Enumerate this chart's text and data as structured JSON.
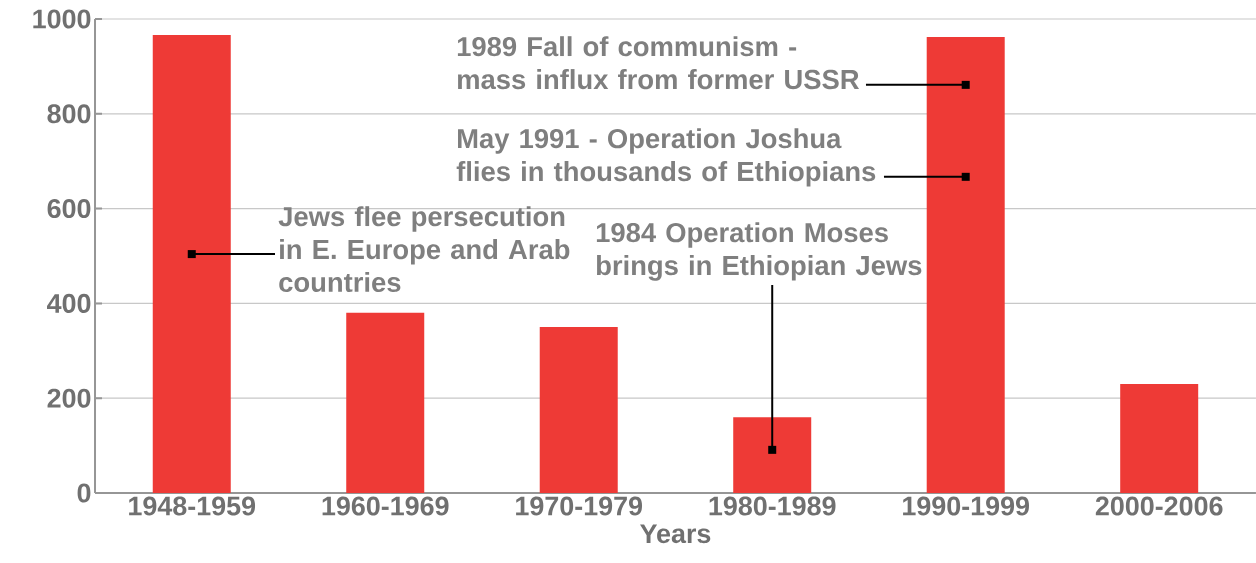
{
  "chart_data": {
    "type": "bar",
    "xlabel": "Years",
    "categories": [
      "1948-1959",
      "1960-1969",
      "1970-1979",
      "1980-1989",
      "1990-1999",
      "2000-2006"
    ],
    "values": [
      966,
      380,
      350,
      160,
      962,
      230
    ],
    "color": "#ee3a36",
    "ylim": [
      0,
      1000
    ],
    "yticks": [
      0,
      200,
      400,
      600,
      800,
      1000
    ],
    "grid": "y",
    "annotations": [
      {
        "text": "Jews flee persecution in E. Europe and Arab countries",
        "x": "1948-1959",
        "y": 504
      },
      {
        "text": "1984 Operation Moses brings in Ethiopian Jews",
        "x": "1980-1989",
        "y": 91
      },
      {
        "text": "1989 Fall of communism - mass influx from former USSR",
        "x": "1990-1999",
        "y": 861
      },
      {
        "text": "May 1991 - Operation Joshua flies in thousands of Ethiopians",
        "x": "1990-1999",
        "y": 667
      }
    ]
  }
}
